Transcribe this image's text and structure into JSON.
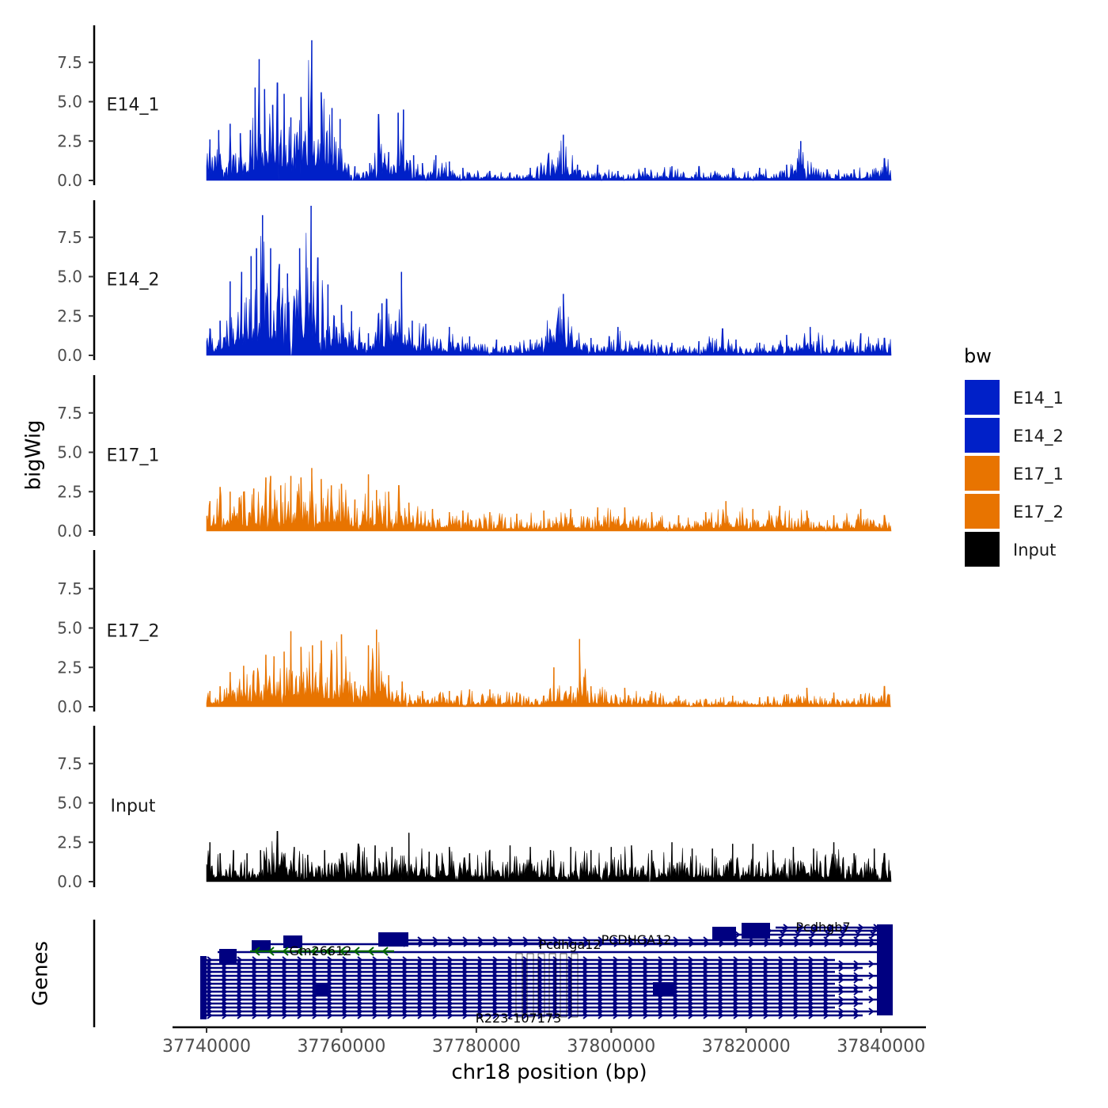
{
  "chart_data": {
    "type": "area",
    "tracks": [
      {
        "name": "E14_1",
        "color": "#0020C8",
        "peaks": [
          [
            37740500,
            2.6
          ],
          [
            37741800,
            3.2
          ],
          [
            37743500,
            3.6
          ],
          [
            37745000,
            3.0
          ],
          [
            37746500,
            3.2
          ],
          [
            37747200,
            5.9
          ],
          [
            37747800,
            7.7
          ],
          [
            37748600,
            5.8
          ],
          [
            37749800,
            4.8
          ],
          [
            37750500,
            6.2
          ],
          [
            37751500,
            5.5
          ],
          [
            37752500,
            4.0
          ],
          [
            37754000,
            5.3
          ],
          [
            37755600,
            8.9
          ],
          [
            37757000,
            5.6
          ],
          [
            37758600,
            4.6
          ],
          [
            37759800,
            3.9
          ],
          [
            37762000,
            0.9
          ],
          [
            37764200,
            1.1
          ],
          [
            37765500,
            4.2
          ],
          [
            37767000,
            1.8
          ],
          [
            37768400,
            4.3
          ],
          [
            37769200,
            4.5
          ],
          [
            37770700,
            1.6
          ],
          [
            37772000,
            1.1
          ],
          [
            37774000,
            1.6
          ],
          [
            37776000,
            1.2
          ],
          [
            37778000,
            0.8
          ],
          [
            37782000,
            0.6
          ],
          [
            37785000,
            0.5
          ],
          [
            37788000,
            0.8
          ],
          [
            37792900,
            2.9
          ],
          [
            37795000,
            1.0
          ],
          [
            37798000,
            1.0
          ],
          [
            37801000,
            0.6
          ],
          [
            37805000,
            0.8
          ],
          [
            37809000,
            0.9
          ],
          [
            37813000,
            0.9
          ],
          [
            37818000,
            0.8
          ],
          [
            37822000,
            0.8
          ],
          [
            37826000,
            1.0
          ],
          [
            37828100,
            2.5
          ],
          [
            37832000,
            0.7
          ],
          [
            37836000,
            0.7
          ],
          [
            37840500,
            1.4
          ]
        ]
      },
      {
        "name": "E14_2",
        "color": "#0020C8",
        "peaks": [
          [
            37740500,
            1.7
          ],
          [
            37742000,
            2.2
          ],
          [
            37743500,
            4.7
          ],
          [
            37745200,
            5.3
          ],
          [
            37746600,
            6.3
          ],
          [
            37747400,
            6.8
          ],
          [
            37748300,
            8.9
          ],
          [
            37749500,
            6.8
          ],
          [
            37750800,
            5.8
          ],
          [
            37752000,
            5.2
          ],
          [
            37753800,
            6.8
          ],
          [
            37755500,
            9.5
          ],
          [
            37756500,
            6.2
          ],
          [
            37758000,
            4.5
          ],
          [
            37760000,
            3.2
          ],
          [
            37761500,
            2.8
          ],
          [
            37764000,
            1.4
          ],
          [
            37766000,
            3.3
          ],
          [
            37768900,
            5.3
          ],
          [
            37770500,
            2.2
          ],
          [
            37772500,
            2.0
          ],
          [
            37776000,
            1.8
          ],
          [
            37779000,
            1.2
          ],
          [
            37783000,
            1.0
          ],
          [
            37788000,
            1.0
          ],
          [
            37792900,
            3.9
          ],
          [
            37797000,
            1.1
          ],
          [
            37801000,
            1.8
          ],
          [
            37806000,
            1.0
          ],
          [
            37809000,
            0.8
          ],
          [
            37813000,
            0.9
          ],
          [
            37816500,
            1.7
          ],
          [
            37818500,
            1.0
          ],
          [
            37822000,
            0.8
          ],
          [
            37826000,
            1.3
          ],
          [
            37829500,
            1.8
          ],
          [
            37833000,
            1.0
          ],
          [
            37837000,
            1.4
          ],
          [
            37840500,
            1.1
          ]
        ]
      },
      {
        "name": "E17_1",
        "color": "#E87400",
        "peaks": [
          [
            37740500,
            1.9
          ],
          [
            37742000,
            2.8
          ],
          [
            37743500,
            2.5
          ],
          [
            37745500,
            2.5
          ],
          [
            37747000,
            2.7
          ],
          [
            37748800,
            3.4
          ],
          [
            37749500,
            3.5
          ],
          [
            37751000,
            2.9
          ],
          [
            37752500,
            3.5
          ],
          [
            37754000,
            3.4
          ],
          [
            37755600,
            4.0
          ],
          [
            37757000,
            3.3
          ],
          [
            37758500,
            2.9
          ],
          [
            37760000,
            3.0
          ],
          [
            37762000,
            2.0
          ],
          [
            37764000,
            3.6
          ],
          [
            37765200,
            2.6
          ],
          [
            37767000,
            2.5
          ],
          [
            37768500,
            2.9
          ],
          [
            37770000,
            1.8
          ],
          [
            37773500,
            1.4
          ],
          [
            37776000,
            1.2
          ],
          [
            37778000,
            1.3
          ],
          [
            37782000,
            1.2
          ],
          [
            37786000,
            1.1
          ],
          [
            37790000,
            1.3
          ],
          [
            37794000,
            1.4
          ],
          [
            37798000,
            1.5
          ],
          [
            37802000,
            1.5
          ],
          [
            37806000,
            1.2
          ],
          [
            37810000,
            1.0
          ],
          [
            37814000,
            1.2
          ],
          [
            37817000,
            1.9
          ],
          [
            37821000,
            1.4
          ],
          [
            37825000,
            1.6
          ],
          [
            37829000,
            1.3
          ],
          [
            37833000,
            1.0
          ],
          [
            37837000,
            1.4
          ],
          [
            37840500,
            1.0
          ]
        ]
      },
      {
        "name": "E17_2",
        "color": "#E87400",
        "peaks": [
          [
            37740500,
            1.0
          ],
          [
            37742000,
            1.3
          ],
          [
            37743500,
            2.2
          ],
          [
            37745500,
            2.6
          ],
          [
            37747000,
            2.3
          ],
          [
            37748800,
            3.3
          ],
          [
            37750000,
            3.2
          ],
          [
            37751500,
            3.5
          ],
          [
            37752500,
            4.8
          ],
          [
            37754000,
            3.8
          ],
          [
            37755700,
            3.9
          ],
          [
            37757000,
            4.2
          ],
          [
            37758500,
            3.6
          ],
          [
            37760000,
            4.6
          ],
          [
            37762000,
            1.6
          ],
          [
            37764000,
            3.9
          ],
          [
            37765200,
            4.9
          ],
          [
            37767000,
            2.0
          ],
          [
            37769000,
            1.6
          ],
          [
            37772000,
            1.0
          ],
          [
            37776000,
            1.0
          ],
          [
            37779000,
            1.1
          ],
          [
            37782000,
            1.1
          ],
          [
            37786000,
            0.9
          ],
          [
            37790000,
            0.7
          ],
          [
            37791500,
            2.5
          ],
          [
            37794000,
            1.3
          ],
          [
            37795300,
            4.3
          ],
          [
            37797000,
            1.3
          ],
          [
            37802000,
            1.2
          ],
          [
            37806000,
            1.0
          ],
          [
            37810000,
            0.7
          ],
          [
            37814000,
            0.5
          ],
          [
            37818000,
            0.7
          ],
          [
            37822000,
            0.6
          ],
          [
            37826000,
            0.8
          ],
          [
            37829000,
            1.2
          ],
          [
            37833000,
            0.9
          ],
          [
            37837000,
            0.8
          ],
          [
            37840500,
            1.3
          ]
        ]
      },
      {
        "name": "Input",
        "color": "#000000",
        "peaks": [
          [
            37740500,
            2.5
          ],
          [
            37742000,
            1.8
          ],
          [
            37744000,
            2.0
          ],
          [
            37746000,
            1.8
          ],
          [
            37748000,
            2.0
          ],
          [
            37750500,
            3.2
          ],
          [
            37753000,
            2.2
          ],
          [
            37755000,
            1.7
          ],
          [
            37757500,
            2.0
          ],
          [
            37760000,
            1.8
          ],
          [
            37762500,
            2.4
          ],
          [
            37765000,
            2.3
          ],
          [
            37767500,
            2.2
          ],
          [
            37770000,
            3.1
          ],
          [
            37773000,
            1.9
          ],
          [
            37776000,
            2.2
          ],
          [
            37779000,
            1.8
          ],
          [
            37782000,
            2.0
          ],
          [
            37785000,
            2.3
          ],
          [
            37788000,
            2.2
          ],
          [
            37791000,
            2.0
          ],
          [
            37794000,
            2.2
          ],
          [
            37797000,
            2.0
          ],
          [
            37800000,
            2.2
          ],
          [
            37803000,
            2.3
          ],
          [
            37806000,
            2.0
          ],
          [
            37809000,
            2.5
          ],
          [
            37812000,
            2.1
          ],
          [
            37815000,
            2.1
          ],
          [
            37818000,
            2.4
          ],
          [
            37821000,
            2.4
          ],
          [
            37824000,
            2.0
          ],
          [
            37827000,
            2.2
          ],
          [
            37830000,
            2.1
          ],
          [
            37833000,
            2.5
          ],
          [
            37836000,
            1.8
          ],
          [
            37839000,
            2.1
          ],
          [
            37840500,
            1.8
          ]
        ]
      }
    ],
    "y_ticks": [
      "0.0",
      "2.5",
      "5.0",
      "7.5"
    ],
    "y_tick_values": [
      0,
      2.5,
      5,
      7.5
    ],
    "ylim": [
      0,
      9.9
    ],
    "ylabel": "bigWig",
    "genes_label": "Genes",
    "xlabel": "chr18 position (bp)",
    "xlim": [
      37740000,
      37842000
    ],
    "x_ticks": [
      "37740000",
      "37760000",
      "37780000",
      "37800000",
      "37820000",
      "37840000"
    ],
    "x_tick_values": [
      37740000,
      37760000,
      37780000,
      37800000,
      37820000,
      37840000
    ],
    "legend": {
      "title": "bw",
      "items": [
        {
          "label": "E14_1",
          "color": "#0020C8"
        },
        {
          "label": "E14_2",
          "color": "#0020C8"
        },
        {
          "label": "E17_1",
          "color": "#E87400"
        },
        {
          "label": "E17_2",
          "color": "#E87400"
        },
        {
          "label": "Input",
          "color": "#000000"
        }
      ]
    },
    "gene_colors": {
      "plus_strand": "#000080",
      "minus_strand": "#006400"
    },
    "gene_labels": [
      "Gm26612",
      "PCDHGA12",
      "Pcdhga12",
      "Pcdhgb7",
      "R223-107173"
    ]
  }
}
